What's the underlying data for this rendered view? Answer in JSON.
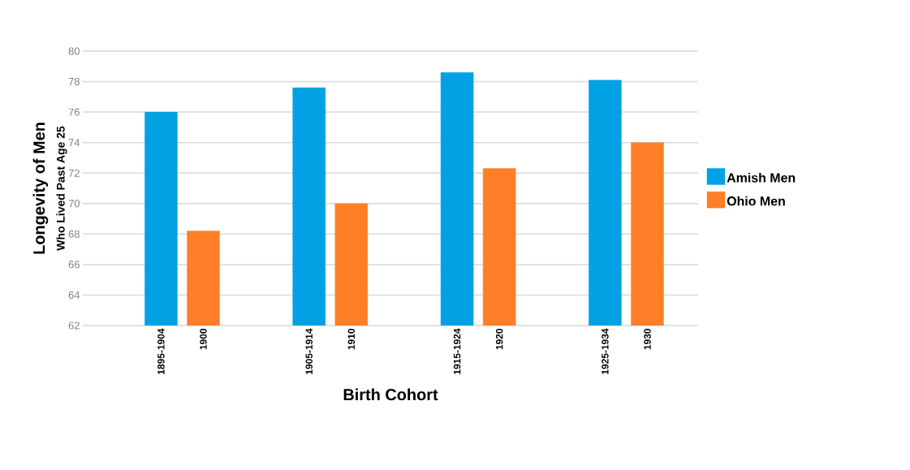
{
  "chart_data": {
    "type": "bar",
    "xlabel": "Birth Cohort",
    "ylabel": "Longevity of Men",
    "annotations": [
      "Who Lived Past Age 25"
    ],
    "categories": [
      "1895-1904",
      "1900",
      "1905-1914",
      "1910",
      "1915-1924",
      "1920",
      "1925-1934",
      "1930"
    ],
    "series": [
      {
        "name": "Amish Men",
        "color": "#00a2e3",
        "values": [
          76.0,
          null,
          77.6,
          null,
          78.6,
          null,
          78.1,
          null
        ]
      },
      {
        "name": "Ohio Men",
        "color": "#fe7f27",
        "values": [
          null,
          68.2,
          null,
          70.0,
          null,
          72.3,
          null,
          74.0
        ]
      }
    ],
    "ylim": [
      62,
      80
    ],
    "yticks": [
      62,
      64,
      66,
      68,
      70,
      72,
      74,
      76,
      78,
      80
    ],
    "grid": "y",
    "legend": "right"
  }
}
